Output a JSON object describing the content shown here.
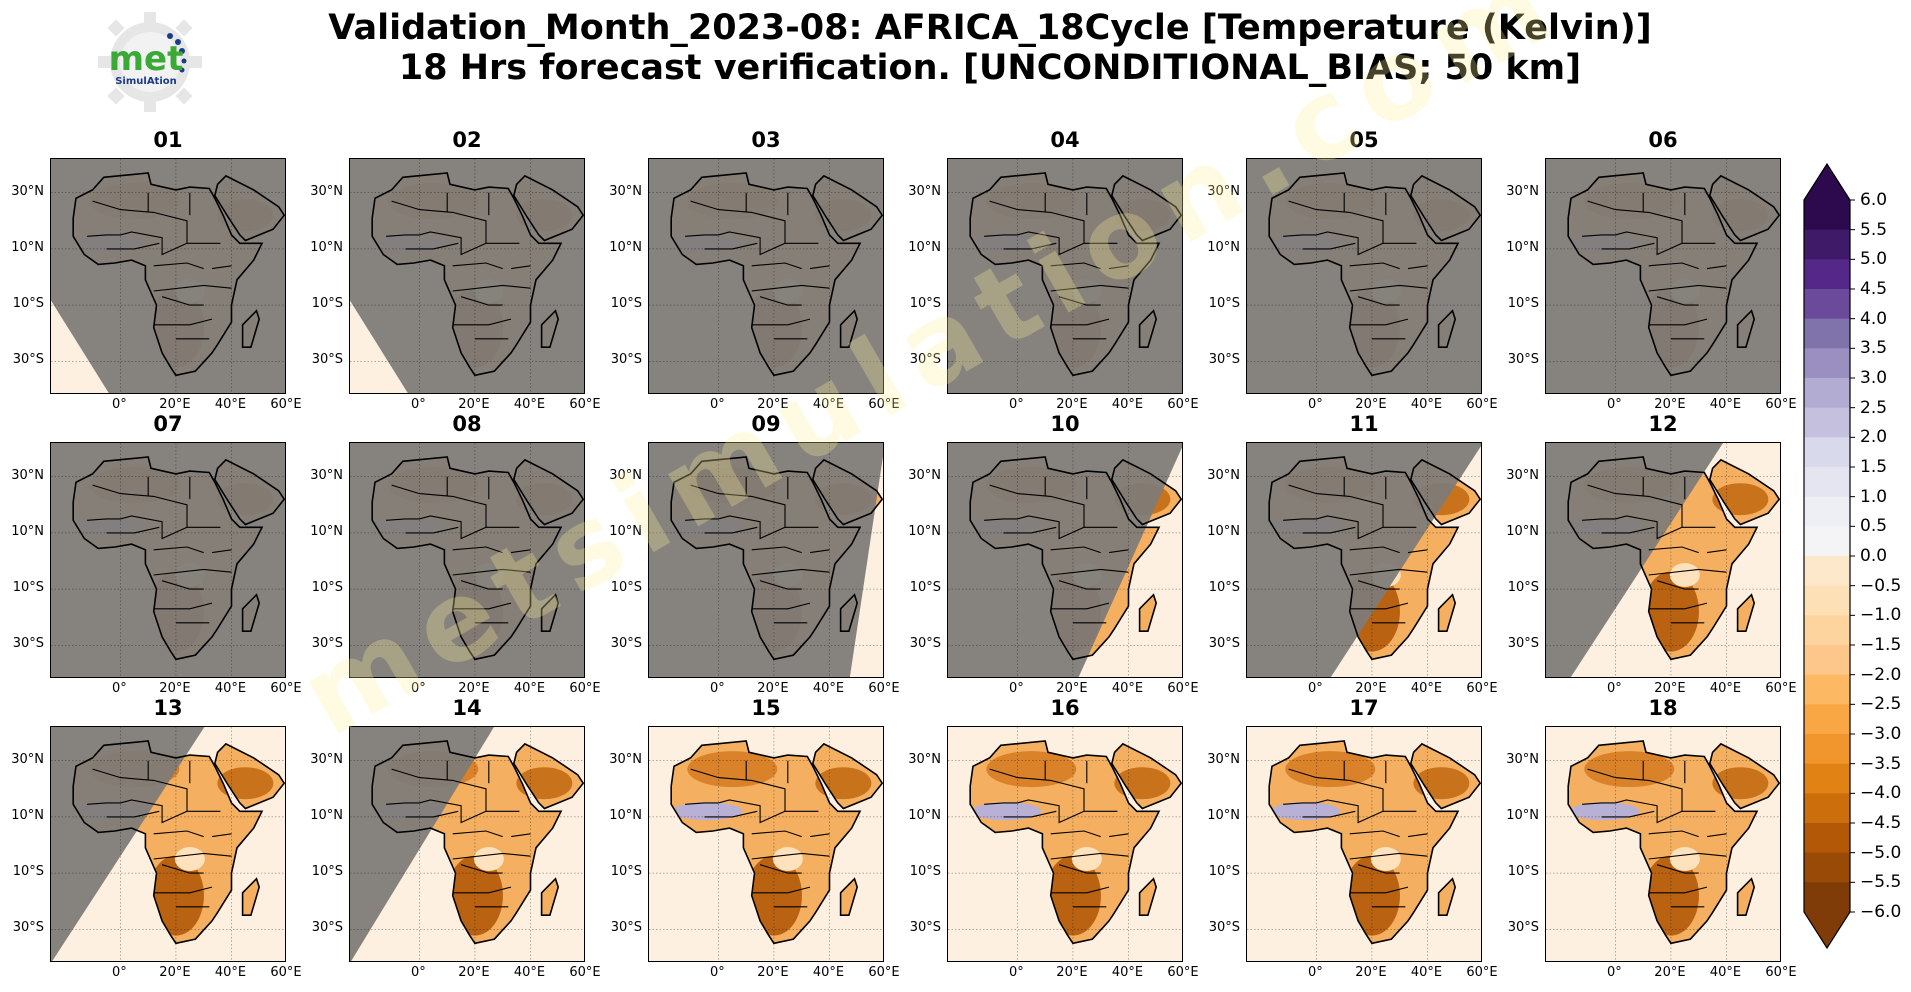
{
  "logo": {
    "text_main": "met",
    "text_sub": "SimulAtion",
    "icon": "gear-logo-icon",
    "accent": "#3aa935",
    "brand_blue": "#1b3a8c"
  },
  "title": {
    "line1": "Validation_Month_2023-08: AFRICA_18Cycle [Temperature (Kelvin)]",
    "line2": "18 Hrs forecast verification. [UNCONDITIONAL_BIAS; 50 km]"
  },
  "watermark": "metsimulation.com",
  "axes": {
    "lat_ticks": [
      "30°N",
      "10°N",
      "10°S",
      "30°S"
    ],
    "lon_ticks": [
      "0°",
      "20°E",
      "40°E",
      "60°E"
    ]
  },
  "colors": {
    "land_masked": "#7c7269",
    "ocean_masked": "#7e7b78"
  },
  "panels": [
    {
      "label": "01",
      "swath": 0.06
    },
    {
      "label": "02",
      "swath": 0.1
    },
    {
      "label": "03",
      "swath": 0.0
    },
    {
      "label": "04",
      "swath": 0.0
    },
    {
      "label": "05",
      "swath": 0.0
    },
    {
      "label": "06",
      "swath": 0.0
    },
    {
      "label": "07",
      "swath": 0.0
    },
    {
      "label": "08",
      "swath": 0.0
    },
    {
      "label": "09",
      "swath": 0.05
    },
    {
      "label": "10",
      "swath": 0.35
    },
    {
      "label": "11",
      "swath": 0.55
    },
    {
      "label": "12",
      "swath": 0.8
    },
    {
      "label": "13",
      "swath": 0.9
    },
    {
      "label": "14",
      "swath": 0.94
    },
    {
      "label": "15",
      "swath": 1.0
    },
    {
      "label": "16",
      "swath": 1.0
    },
    {
      "label": "17",
      "swath": 1.0
    },
    {
      "label": "18",
      "swath": 1.0
    }
  ],
  "colorbar": {
    "min": -6.0,
    "max": 6.0,
    "step": 0.5,
    "labels": [
      "6.0",
      "5.5",
      "5.0",
      "4.5",
      "4.0",
      "3.5",
      "3.0",
      "2.5",
      "2.0",
      "1.5",
      "1.0",
      "0.5",
      "0.0",
      "−0.5",
      "−1.0",
      "−1.5",
      "−2.0",
      "−2.5",
      "−3.0",
      "−3.5",
      "−4.0",
      "−4.5",
      "−5.0",
      "−5.5",
      "−6.0"
    ],
    "top_color": "#2d0a4e",
    "bottom_color": "#7f3b08",
    "colors": [
      "#2d0a4e",
      "#3f1a69",
      "#542788",
      "#6b4a9c",
      "#8073ac",
      "#9a8fc0",
      "#b2abd2",
      "#c5c0de",
      "#d8daeb",
      "#e4e5f0",
      "#eeeef5",
      "#f4f4f6",
      "#fee8cc",
      "#fee0b6",
      "#fdd49e",
      "#fdc68a",
      "#fdb863",
      "#f9a744",
      "#f1952d",
      "#e08214",
      "#cd6e0d",
      "#b35806",
      "#9a4a07",
      "#7f3b08"
    ]
  }
}
